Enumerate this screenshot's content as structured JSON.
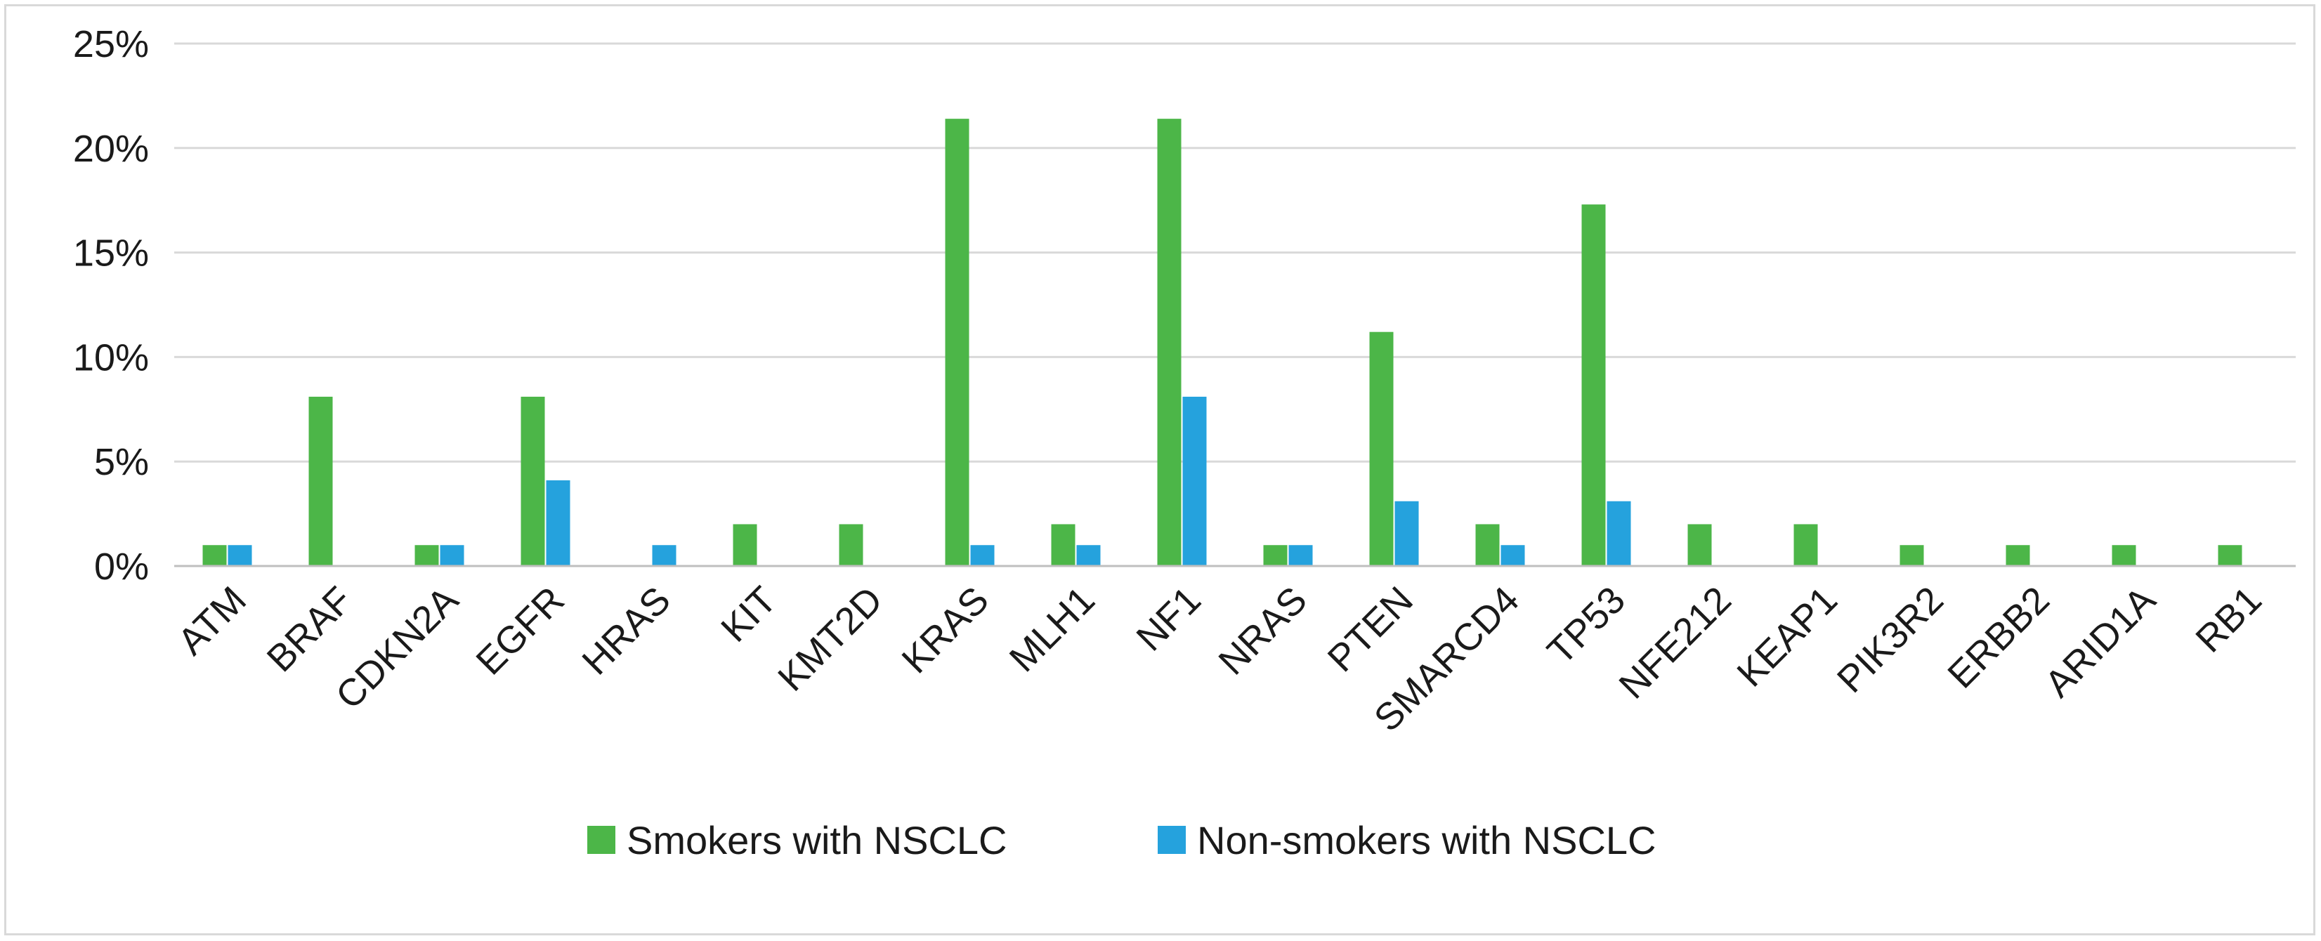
{
  "chart_data": {
    "type": "bar",
    "categories": [
      "ATM",
      "BRAF",
      "CDKN2A",
      "EGFR",
      "HRAS",
      "KIT",
      "KMT2D",
      "KRAS",
      "MLH1",
      "NF1",
      "NRAS",
      "PTEN",
      "SMARCD4",
      "TP53",
      "NFE212",
      "KEAP1",
      "PIK3R2",
      "ERBB2",
      "ARID1A",
      "RB1"
    ],
    "series": [
      {
        "name": "Smokers with NSCLC",
        "color": "#4cb648",
        "values": [
          1,
          8.1,
          1,
          8.1,
          0,
          2,
          2,
          21.4,
          2,
          21.4,
          1,
          11.2,
          2,
          17.3,
          2,
          2,
          1,
          1,
          1,
          1
        ]
      },
      {
        "name": "Non-smokers with NSCLC",
        "color": "#25a2dd",
        "values": [
          1,
          0,
          1,
          4.1,
          1,
          0,
          0,
          1,
          1,
          8.1,
          1,
          3.1,
          1,
          3.1,
          0,
          0,
          0,
          0,
          0,
          0
        ]
      }
    ],
    "yticks": [
      "0%",
      "5%",
      "10%",
      "15%",
      "20%",
      "25%"
    ],
    "ylim": [
      0,
      25
    ],
    "grid": true,
    "legend_position": "bottom",
    "title": "",
    "xlabel": "",
    "ylabel": ""
  }
}
